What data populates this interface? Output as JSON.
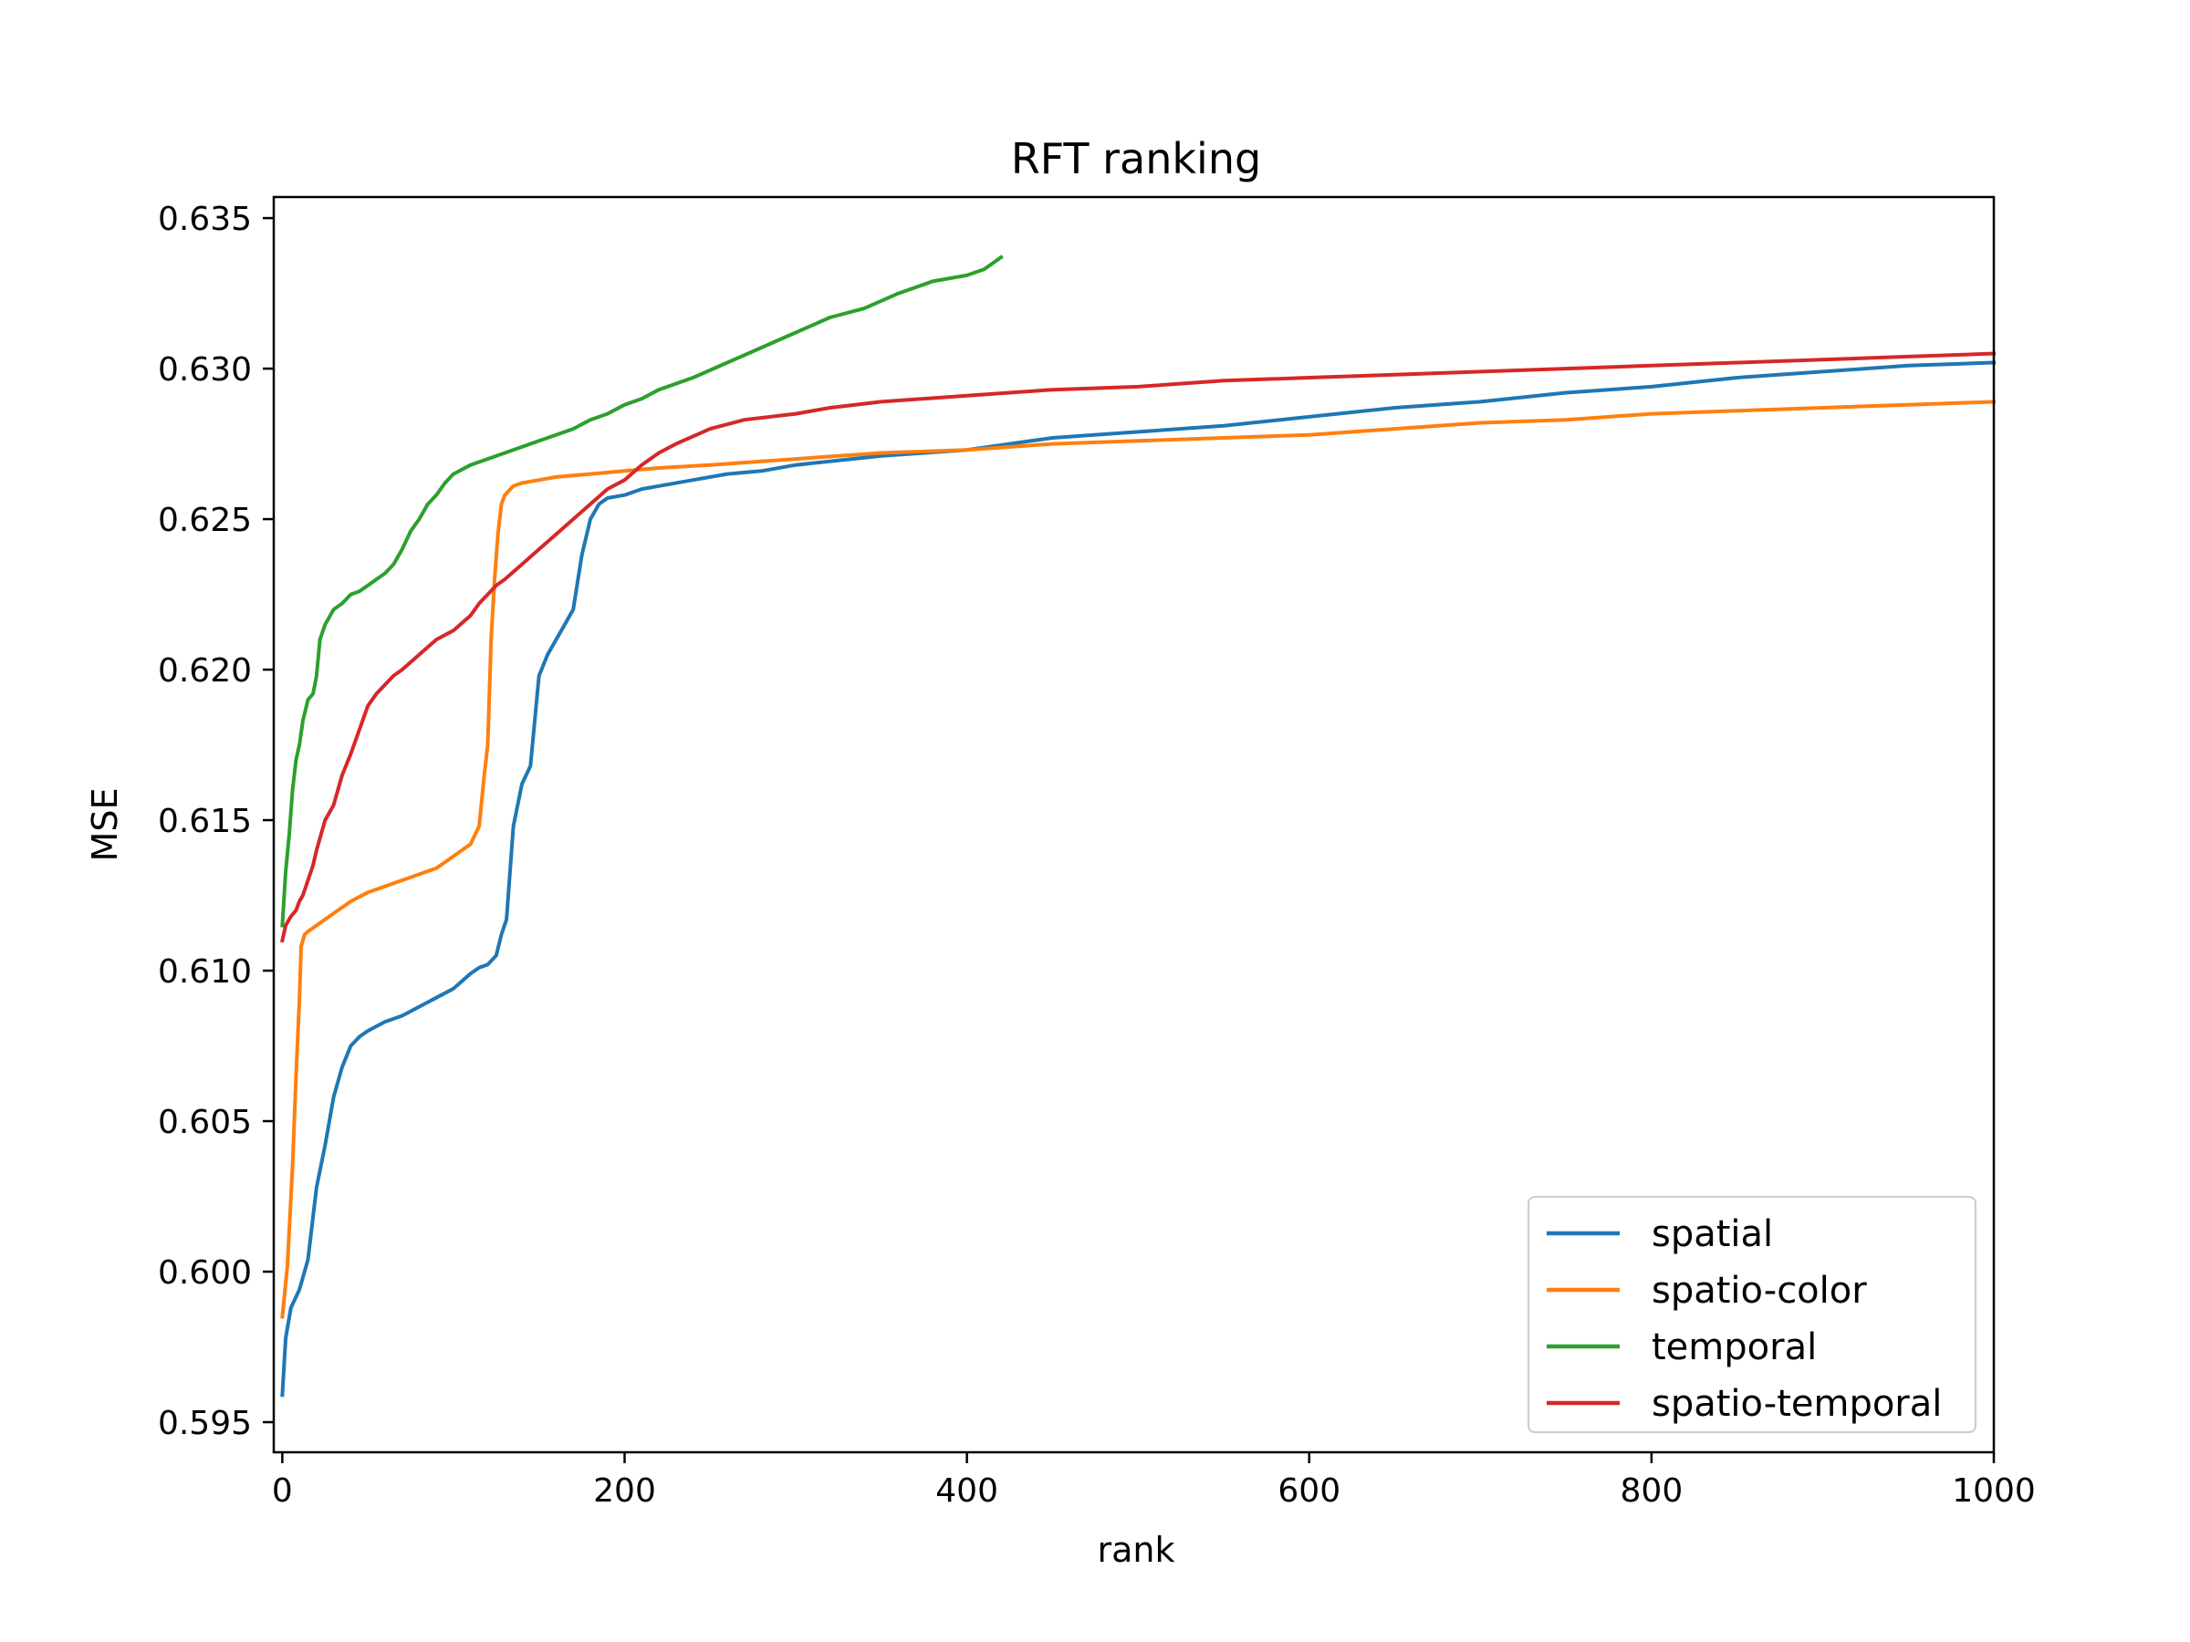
{
  "chart_data": {
    "type": "line",
    "title": "RFT ranking",
    "xlabel": "rank",
    "ylabel": "MSE",
    "xlim": [
      -5,
      1000
    ],
    "ylim": [
      0.594,
      0.6357
    ],
    "xticks": [
      0,
      200,
      400,
      600,
      800,
      1000
    ],
    "xtick_labels": [
      "0",
      "200",
      "400",
      "600",
      "800",
      "1000"
    ],
    "yticks": [
      0.595,
      0.6,
      0.605,
      0.61,
      0.615,
      0.62,
      0.625,
      0.63,
      0.635
    ],
    "ytick_labels": [
      "0.595",
      "0.600",
      "0.605",
      "0.610",
      "0.615",
      "0.620",
      "0.625",
      "0.630",
      "0.635"
    ],
    "grid": false,
    "legend_position": "lower-right",
    "series": [
      {
        "name": "spatial",
        "color": "#1f77b4",
        "x": [
          0,
          2,
          5,
          10,
          15,
          20,
          25,
          30,
          35,
          40,
          45,
          50,
          60,
          70,
          80,
          90,
          100,
          110,
          115,
          120,
          125,
          128,
          131,
          135,
          140,
          145,
          150,
          155,
          160,
          165,
          170,
          175,
          180,
          185,
          190,
          200,
          210,
          220,
          240,
          260,
          280,
          300,
          350,
          400,
          450,
          500,
          550,
          600,
          650,
          700,
          750,
          800,
          850,
          900,
          950,
          1000
        ],
        "y": [
          0.5959,
          0.5978,
          0.5988,
          0.5994,
          0.6004,
          0.6028,
          0.6042,
          0.6058,
          0.6068,
          0.6075,
          0.6078,
          0.608,
          0.6083,
          0.6085,
          0.6088,
          0.6091,
          0.6094,
          0.6099,
          0.6101,
          0.6102,
          0.6105,
          0.6112,
          0.6117,
          0.6148,
          0.6162,
          0.6168,
          0.6198,
          0.6205,
          0.621,
          0.6215,
          0.622,
          0.6238,
          0.625,
          0.6255,
          0.6257,
          0.6258,
          0.626,
          0.6261,
          0.6263,
          0.6265,
          0.6266,
          0.6268,
          0.6271,
          0.6273,
          0.6277,
          0.6279,
          0.6281,
          0.6284,
          0.6287,
          0.6289,
          0.6292,
          0.6294,
          0.6297,
          0.6299,
          0.6301,
          0.6302
        ]
      },
      {
        "name": "spatio-color",
        "color": "#ff7f0e",
        "x": [
          0,
          3,
          6,
          8,
          10,
          11,
          12,
          13,
          15,
          20,
          25,
          30,
          40,
          50,
          60,
          70,
          80,
          90,
          100,
          105,
          110,
          115,
          118,
          120,
          122,
          124,
          126,
          128,
          130,
          135,
          140,
          150,
          160,
          180,
          200,
          220,
          250,
          300,
          350,
          400,
          450,
          500,
          550,
          600,
          650,
          700,
          750,
          800,
          850,
          900,
          950,
          1000
        ],
        "y": [
          0.5985,
          0.6002,
          0.6035,
          0.6065,
          0.609,
          0.6108,
          0.611,
          0.6112,
          0.6113,
          0.6115,
          0.6117,
          0.6119,
          0.6123,
          0.6126,
          0.6128,
          0.613,
          0.6132,
          0.6134,
          0.6138,
          0.614,
          0.6142,
          0.6148,
          0.6165,
          0.6175,
          0.621,
          0.623,
          0.6245,
          0.6255,
          0.6258,
          0.6261,
          0.6262,
          0.6263,
          0.6264,
          0.6265,
          0.6266,
          0.6267,
          0.6268,
          0.627,
          0.6272,
          0.6273,
          0.6275,
          0.6276,
          0.6277,
          0.6278,
          0.628,
          0.6282,
          0.6283,
          0.6285,
          0.6286,
          0.6287,
          0.6288,
          0.6289
        ]
      },
      {
        "name": "temporal",
        "color": "#2ca02c",
        "x": [
          0,
          2,
          4,
          6,
          8,
          10,
          12,
          15,
          18,
          20,
          22,
          25,
          28,
          30,
          35,
          40,
          45,
          50,
          55,
          60,
          65,
          70,
          75,
          80,
          85,
          90,
          95,
          100,
          110,
          120,
          130,
          140,
          150,
          160,
          170,
          180,
          190,
          200,
          210,
          220,
          240,
          260,
          280,
          300,
          320,
          340,
          360,
          380,
          400,
          410,
          415,
          420
        ],
        "y": [
          0.6115,
          0.6133,
          0.6145,
          0.616,
          0.617,
          0.6175,
          0.6183,
          0.619,
          0.6192,
          0.6198,
          0.621,
          0.6215,
          0.6218,
          0.622,
          0.6222,
          0.6225,
          0.6226,
          0.6228,
          0.623,
          0.6232,
          0.6235,
          0.624,
          0.6246,
          0.625,
          0.6255,
          0.6258,
          0.6262,
          0.6265,
          0.6268,
          0.627,
          0.6272,
          0.6274,
          0.6276,
          0.6278,
          0.628,
          0.6283,
          0.6285,
          0.6288,
          0.629,
          0.6293,
          0.6297,
          0.6302,
          0.6307,
          0.6312,
          0.6317,
          0.632,
          0.6325,
          0.6329,
          0.6331,
          0.6333,
          0.6335,
          0.6337
        ]
      },
      {
        "name": "spatio-temporal",
        "color": "#d62728",
        "x": [
          0,
          2,
          5,
          8,
          10,
          12,
          15,
          18,
          20,
          25,
          30,
          35,
          40,
          45,
          50,
          55,
          60,
          65,
          70,
          80,
          90,
          100,
          110,
          115,
          120,
          125,
          130,
          140,
          150,
          160,
          170,
          180,
          190,
          200,
          210,
          220,
          230,
          250,
          270,
          300,
          320,
          350,
          400,
          450,
          500,
          550,
          600,
          650,
          700,
          750,
          800,
          850,
          900,
          950,
          1000
        ],
        "y": [
          0.611,
          0.6115,
          0.6118,
          0.612,
          0.6123,
          0.6125,
          0.613,
          0.6135,
          0.614,
          0.615,
          0.6155,
          0.6165,
          0.6172,
          0.618,
          0.6188,
          0.6192,
          0.6195,
          0.6198,
          0.62,
          0.6205,
          0.621,
          0.6213,
          0.6218,
          0.6222,
          0.6225,
          0.6228,
          0.623,
          0.6235,
          0.624,
          0.6245,
          0.625,
          0.6255,
          0.626,
          0.6263,
          0.6268,
          0.6272,
          0.6275,
          0.628,
          0.6283,
          0.6285,
          0.6287,
          0.6289,
          0.6291,
          0.6293,
          0.6294,
          0.6296,
          0.6297,
          0.6298,
          0.6299,
          0.63,
          0.6301,
          0.6302,
          0.6303,
          0.6304,
          0.6305
        ]
      }
    ]
  }
}
